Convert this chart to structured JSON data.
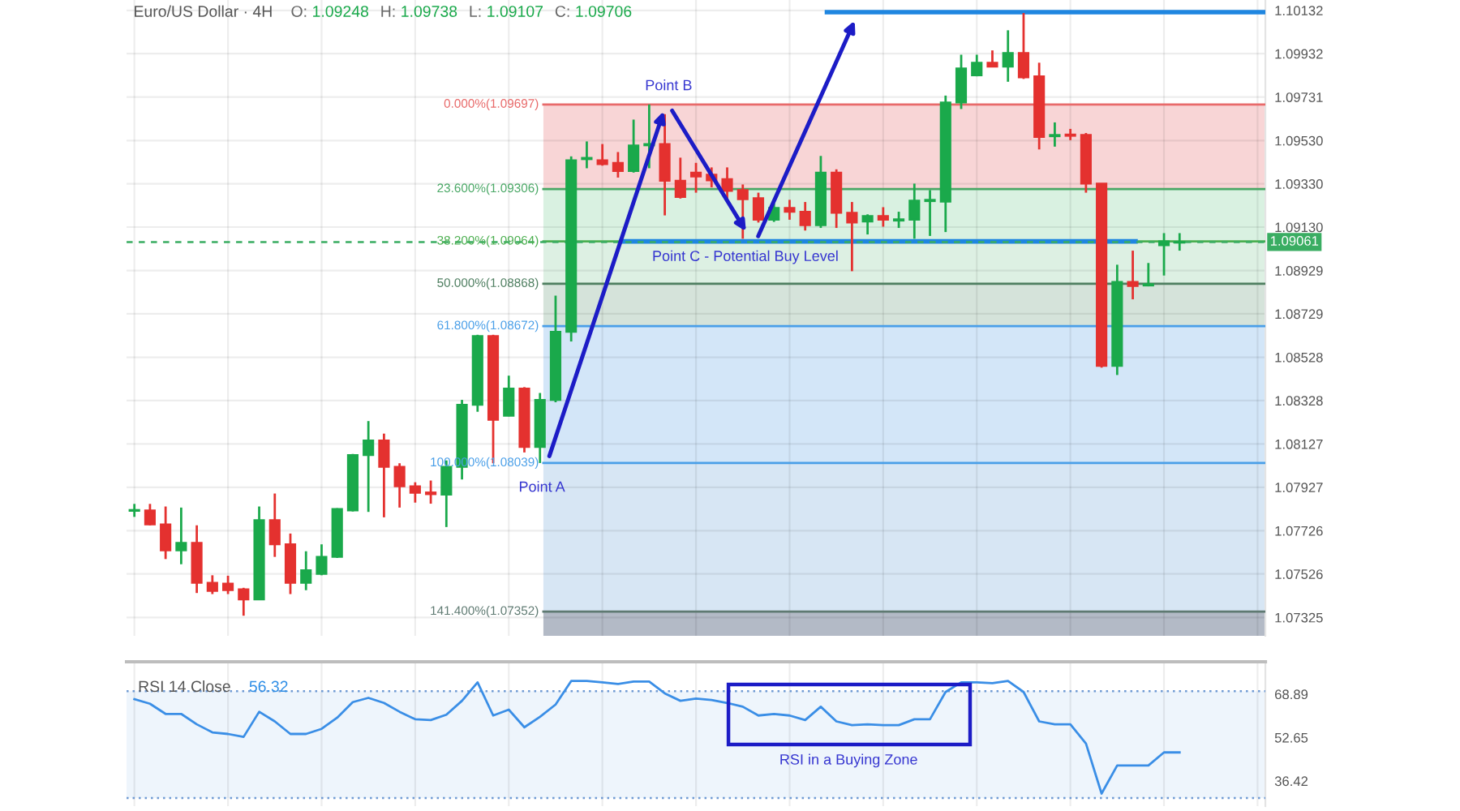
{
  "chart_data": [
    {
      "type": "candlestick",
      "title": "Euro/US Dollar · 4H",
      "subtitle": "O: 1.09248 H: 1.09738 L: 1.09107 C: 1.09706",
      "categories": [
        null,
        null,
        null,
        null,
        null,
        null,
        null,
        null,
        null,
        null,
        null,
        null,
        null,
        null,
        null,
        null,
        null,
        null,
        null,
        null,
        null,
        null,
        null,
        null,
        null,
        null,
        null,
        null,
        null,
        null,
        null,
        null,
        null,
        null,
        null,
        null,
        null,
        null,
        null,
        null,
        null,
        null,
        null,
        null,
        null,
        null,
        null,
        null,
        null,
        null,
        null,
        null,
        null,
        null,
        null,
        null,
        null,
        null,
        null,
        null,
        null,
        null,
        null,
        null,
        null,
        null,
        null,
        null,
        null,
        null,
        null,
        null,
        null
      ],
      "ohlc": [
        [
          1.07818,
          1.0785,
          1.0779,
          1.07822
        ],
        [
          1.0782,
          1.0785,
          1.07751,
          1.07755
        ],
        [
          1.07755,
          1.07838,
          1.07595,
          1.07635
        ],
        [
          1.07635,
          1.07833,
          1.07571,
          1.0767
        ],
        [
          1.0767,
          1.07751,
          1.07438,
          1.07485
        ],
        [
          1.07485,
          1.0752,
          1.07433,
          1.07448
        ],
        [
          1.07481,
          1.07518,
          1.07433,
          1.07451
        ],
        [
          1.07455,
          1.07462,
          1.07333,
          1.07408
        ],
        [
          1.07408,
          1.07838,
          1.07405,
          1.07775
        ],
        [
          1.07775,
          1.07898,
          1.07605,
          1.07663
        ],
        [
          1.07663,
          1.07713,
          1.07433,
          1.07485
        ],
        [
          1.07485,
          1.07631,
          1.07451,
          1.07543
        ],
        [
          1.07526,
          1.07663,
          1.0752,
          1.07605
        ],
        [
          1.07605,
          1.0783,
          1.076,
          1.07826
        ],
        [
          1.0782,
          1.08081,
          1.07815,
          1.08076
        ],
        [
          1.08076,
          1.08233,
          1.07813,
          1.08143
        ],
        [
          1.08143,
          1.08175,
          1.07788,
          1.08021
        ],
        [
          1.08021,
          1.08038,
          1.07833,
          1.07931
        ],
        [
          1.07931,
          1.0795,
          1.07856,
          1.07901
        ],
        [
          1.07903,
          1.07958,
          1.07851,
          1.07895
        ],
        [
          1.07893,
          1.08051,
          1.07743,
          1.08021
        ],
        [
          1.08021,
          1.08331,
          1.07963,
          1.08308
        ],
        [
          1.08308,
          1.08632,
          1.08276,
          1.08626
        ],
        [
          1.08626,
          1.08632,
          1.08038,
          1.08239
        ],
        [
          1.08258,
          1.08443,
          1.08255,
          1.08383
        ],
        [
          1.08383,
          1.0839,
          1.08088,
          1.08113
        ],
        [
          1.08113,
          1.08363,
          1.08039,
          1.08331
        ],
        [
          1.08331,
          1.08813,
          1.0832,
          1.08646
        ],
        [
          1.08646,
          1.09457,
          1.08601,
          1.09439
        ],
        [
          1.09444,
          1.09526,
          1.09402,
          1.0945
        ],
        [
          1.09439,
          1.09514,
          1.09414,
          1.09421
        ],
        [
          1.09427,
          1.09477,
          1.09359,
          1.09389
        ],
        [
          1.09389,
          1.09627,
          1.09382,
          1.09507
        ],
        [
          1.09508,
          1.09697,
          1.09402,
          1.09514
        ],
        [
          1.09514,
          1.09652,
          1.09184,
          1.09344
        ],
        [
          1.09344,
          1.09451,
          1.09262,
          1.09269
        ],
        [
          1.09382,
          1.09427,
          1.09289,
          1.09364
        ],
        [
          1.09372,
          1.09406,
          1.09314,
          1.09346
        ],
        [
          1.09352,
          1.09406,
          1.09246,
          1.09297
        ],
        [
          1.09301,
          1.09327,
          1.09076,
          1.09259
        ],
        [
          1.09264,
          1.09289,
          1.09151,
          1.09164
        ],
        [
          1.09164,
          1.09239,
          1.09154,
          1.09219
        ],
        [
          1.09219,
          1.09256,
          1.09164,
          1.09201
        ],
        [
          1.09201,
          1.09246,
          1.09114,
          1.09139
        ],
        [
          1.09139,
          1.09459,
          1.09126,
          1.09382
        ],
        [
          1.09382,
          1.09397,
          1.09126,
          1.09196
        ],
        [
          1.09196,
          1.09246,
          1.08926,
          1.09151
        ],
        [
          1.09156,
          1.09189,
          1.09096,
          1.09181
        ],
        [
          1.09181,
          1.09222,
          1.09132,
          1.09164
        ],
        [
          1.0916,
          1.09201,
          1.09126,
          1.09166
        ],
        [
          1.09164,
          1.09331,
          1.09076,
          1.09252
        ],
        [
          1.0925,
          1.09301,
          1.09089,
          1.09256
        ],
        [
          1.09248,
          1.09738,
          1.09107,
          1.09706
        ],
        [
          1.09706,
          1.09927,
          1.09676,
          1.09864
        ],
        [
          1.09832,
          1.09927,
          1.09827,
          1.0989
        ],
        [
          1.0989,
          1.09947,
          1.09869,
          1.09872
        ],
        [
          1.09872,
          1.1004,
          1.09802,
          1.09935
        ],
        [
          1.09935,
          1.1012,
          1.09815,
          1.09822
        ],
        [
          1.09827,
          1.0989,
          1.09489,
          1.09547
        ],
        [
          1.0955,
          1.09614,
          1.09502,
          1.09556
        ],
        [
          1.09558,
          1.09584,
          1.09532,
          1.09552
        ],
        [
          1.09556,
          1.09565,
          1.09289,
          1.09331
        ],
        [
          1.09331,
          1.09331,
          1.0848,
          1.08488
        ],
        [
          1.08488,
          1.08956,
          1.08446,
          1.08876
        ],
        [
          1.08876,
          1.09021,
          1.08796,
          1.08858
        ],
        [
          1.0886,
          1.08964,
          1.08856,
          1.08866
        ],
        [
          1.09046,
          1.09102,
          1.08906,
          1.09064
        ],
        [
          1.09058,
          1.09102,
          1.09021,
          1.09061
        ],
        null,
        null,
        null,
        null,
        null
      ],
      "colors": [
        "#1aa94b",
        "#e4312f",
        "#e4312f",
        "#1aa94b",
        "#e4312f",
        "#e4312f",
        "#e4312f",
        "#e4312f",
        "#1aa94b",
        "#e4312f",
        "#e4312f",
        "#1aa94b",
        "#1aa94b",
        "#1aa94b",
        "#1aa94b",
        "#1aa94b",
        "#e4312f",
        "#e4312f",
        "#e4312f",
        "#e4312f",
        "#1aa94b",
        "#1aa94b",
        "#1aa94b",
        "#e4312f",
        "#1aa94b",
        "#e4312f",
        "#1aa94b",
        "#1aa94b",
        "#1aa94b",
        "#1aa94b",
        "#e4312f",
        "#e4312f",
        "#1aa94b",
        "#1aa94b",
        "#e4312f",
        "#e4312f",
        "#e4312f",
        "#e4312f",
        "#e4312f",
        "#e4312f",
        "#e4312f",
        "#1aa94b",
        "#e4312f",
        "#e4312f",
        "#1aa94b",
        "#e4312f",
        "#e4312f",
        "#1aa94b",
        "#e4312f",
        "#1aa94b",
        "#1aa94b",
        "#1aa94b",
        "#1aa94b",
        "#1aa94b",
        "#1aa94b",
        "#e4312f",
        "#1aa94b",
        "#e4312f",
        "#e4312f",
        "#1aa94b",
        "#e4312f",
        "#e4312f",
        "#e4312f",
        "#1aa94b",
        "#e4312f",
        "#1aa94b",
        "#1aa94b",
        "#1aa94b",
        null,
        null,
        null,
        null,
        null
      ],
      "ylim": [
        1.0724,
        1.1018
      ],
      "yticks": [
        1.10132,
        1.09932,
        1.09731,
        {
          "value": 1.0953,
          "label": "1.09530"
        },
        {
          "value": 1.0933,
          "label": "1.09330"
        },
        {
          "value": 1.0913,
          "label": "1.09130"
        },
        1.08929,
        1.08729,
        1.08528,
        1.08328,
        1.08127,
        1.07927,
        1.07726,
        1.07526,
        1.07325
      ],
      "grid": true,
      "tick_labels": "y",
      "bands": [
        {
          "axis": "y",
          "from": 1.09306,
          "to": 1.09697,
          "color": "#f8d5d6"
        },
        {
          "axis": "y",
          "from": 1.09064,
          "to": 1.09306,
          "color": "#d9f1e1"
        },
        {
          "axis": "y",
          "from": 1.08868,
          "to": 1.09064,
          "color": "#ddf0e3"
        },
        {
          "axis": "y",
          "from": 1.08672,
          "to": 1.08868,
          "color": "#d5e3da"
        },
        {
          "axis": "y",
          "from": 1.08039,
          "to": 1.08672,
          "color": "#d3e6f8"
        },
        {
          "axis": "y",
          "from": 1.07352,
          "to": 1.08039,
          "color": "#d7e6f4"
        },
        {
          "axis": "y",
          "from": 1.0724,
          "to": 1.07352,
          "color": "#b3bac6"
        }
      ],
      "ref_lines": [
        {
          "axis": "y",
          "value": 1.09697,
          "label": "0.000%(1.09697)",
          "color": "#e86a6a"
        },
        {
          "axis": "y",
          "value": 1.09306,
          "label": "23.600%(1.09306)",
          "color": "#4aa866"
        },
        {
          "axis": "y",
          "value": 1.09064,
          "label": "38.200%(1.09064)",
          "color": "#4caf50"
        },
        {
          "axis": "y",
          "value": 1.08868,
          "label": "50.000%(1.08868)",
          "color": "#4f7f61"
        },
        {
          "axis": "y",
          "value": 1.08672,
          "label": "61.800%(1.08672)",
          "color": "#4a9fe8"
        },
        {
          "axis": "y",
          "value": 1.08039,
          "label": "100.000%(1.08039)",
          "color": "#4a9fe8"
        },
        {
          "axis": "y",
          "value": 1.07352,
          "label": "141.400%(1.07352)",
          "color": "#5f7a72"
        },
        {
          "axis": "y",
          "value": 1.09064,
          "color": "#1f86e0"
        },
        {
          "axis": "y",
          "value": 1.10124,
          "color": "#1f86e0"
        },
        {
          "axis": "y",
          "value": 1.09061,
          "label": "1.09061",
          "color": "#3aad62",
          "line_style": "dashed"
        }
      ],
      "annotations": [
        {
          "text": "Point A",
          "y": 1.08039
        },
        {
          "text": "Point B",
          "y": 1.09697
        },
        {
          "text": "Point C - Potential Buy Level",
          "y": 1.09064
        }
      ]
    },
    {
      "type": "line",
      "title": "RSI 14 Close",
      "subtitle": "56.32",
      "categories": [
        null,
        null,
        null,
        null,
        null,
        null,
        null,
        null,
        null,
        null,
        null,
        null,
        null,
        null,
        null,
        null,
        null,
        null,
        null,
        null,
        null,
        null,
        null,
        null,
        null,
        null,
        null,
        null,
        null,
        null,
        null,
        null,
        null,
        null,
        null,
        null,
        null,
        null,
        null,
        null,
        null,
        null,
        null,
        null,
        null,
        null,
        null,
        null,
        null,
        null,
        null,
        null,
        null,
        null,
        null,
        null,
        null,
        null,
        null,
        null,
        null,
        null,
        null,
        null,
        null,
        null,
        null,
        null,
        null,
        null,
        null,
        null,
        null
      ],
      "series": [
        {
          "color": "#3a8ee6",
          "values": [
            67.0,
            65.3,
            61.5,
            61.5,
            57.6,
            54.6,
            54.0,
            52.9,
            62.3,
            58.7,
            54.0,
            54.0,
            55.9,
            60.1,
            65.9,
            67.5,
            65.6,
            62.3,
            59.5,
            59.2,
            61.2,
            66.4,
            73.3,
            60.9,
            63.1,
            56.5,
            60.4,
            65.0,
            73.8,
            73.8,
            73.3,
            72.7,
            73.6,
            73.6,
            69.2,
            66.4,
            67.2,
            66.7,
            65.6,
            64.2,
            60.9,
            61.5,
            60.9,
            59.2,
            64.2,
            58.7,
            57.3,
            57.6,
            57.3,
            57.3,
            59.5,
            59.5,
            69.7,
            73.3,
            73.3,
            73.0,
            73.8,
            69.7,
            58.7,
            57.6,
            57.6,
            50.4,
            31.7,
            42.2,
            42.2,
            42.2,
            47.1,
            47.1,
            null,
            null,
            null,
            null,
            null
          ]
        }
      ],
      "ylim": [
        27,
        81
      ],
      "yticks": [
        68.89,
        52.65,
        36.42
      ],
      "grid": "x",
      "tick_labels": "y",
      "bands": [
        {
          "axis": "y",
          "from": 30,
          "to": 70,
          "color": "#eef5fc"
        }
      ],
      "ref_lines": [
        {
          "axis": "y",
          "value": 70,
          "color": "#6f9ad3",
          "line_style": "dotted"
        },
        {
          "axis": "y",
          "value": 30,
          "color": "#6f9ad3",
          "line_style": "dotted"
        }
      ],
      "annotations": [
        "RSI in a Buying Zone"
      ]
    }
  ]
}
